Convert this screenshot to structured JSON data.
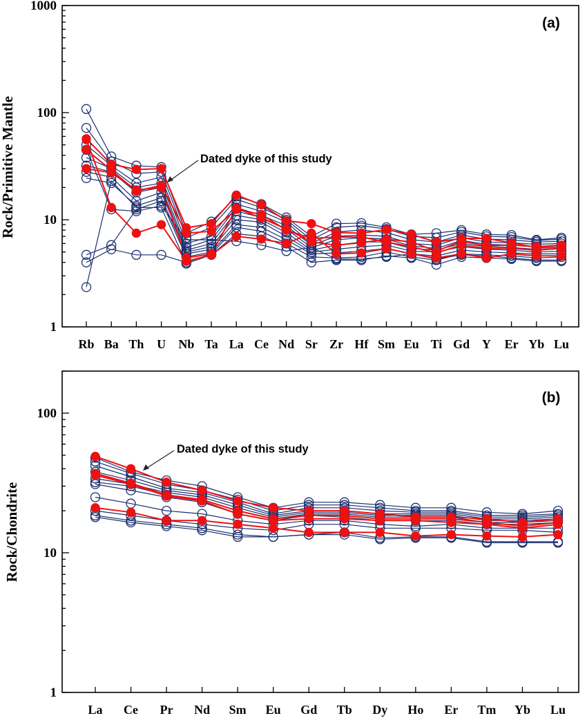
{
  "colors": {
    "sample": "#1a2e6e",
    "dated_dyke": "#ee1111",
    "axis": "#000000"
  },
  "chart_data": [
    {
      "type": "line",
      "panel": "(a)",
      "ylabel": "Rock/Primitive Mantle",
      "yscale": "log",
      "ylim": [
        1,
        1000
      ],
      "yticks": [
        1,
        10,
        100,
        1000
      ],
      "ytick_labels": [
        "1",
        "10",
        "100",
        "1000"
      ],
      "categories": [
        "Rb",
        "Ba",
        "Th",
        "U",
        "Nb",
        "Ta",
        "La",
        "Ce",
        "Nd",
        "Sr",
        "Zr",
        "Hf",
        "Sm",
        "Eu",
        "Ti",
        "Gd",
        "Y",
        "Er",
        "Yb",
        "Lu"
      ],
      "annotation": "Dated dyke of this study",
      "series": [
        {
          "group": "sample",
          "values": [
            108,
            39,
            32,
            31,
            7.5,
            9.6,
            16.5,
            14,
            10.5,
            7,
            9.2,
            9.3,
            8.5,
            7.3,
            7.5,
            8,
            7.3,
            7.2,
            6.5,
            6.8
          ]
        },
        {
          "group": "sample",
          "values": [
            72,
            35,
            27,
            28,
            6.8,
            8.5,
            15.5,
            13,
            10,
            6.5,
            8.5,
            8.8,
            8.2,
            7,
            6.8,
            7.7,
            7,
            6.9,
            6.4,
            6.6
          ]
        },
        {
          "group": "sample",
          "values": [
            50,
            32,
            22,
            25,
            6,
            7,
            14,
            12,
            9.5,
            6,
            7.7,
            8,
            7.6,
            6.5,
            6.2,
            7.2,
            6.6,
            6.5,
            6.2,
            6.3
          ]
        },
        {
          "group": "sample",
          "values": [
            38,
            30,
            20,
            22,
            5.5,
            6.5,
            13,
            11,
            8.8,
            5.8,
            7,
            7.2,
            7,
            6,
            5.8,
            6.8,
            6.2,
            6.1,
            5.9,
            6
          ]
        },
        {
          "group": "sample",
          "values": [
            32,
            28,
            18,
            20,
            5.2,
            6,
            12,
            10.5,
            8.2,
            5.5,
            6.5,
            6.8,
            6.6,
            5.7,
            5.4,
            6.4,
            5.9,
            5.8,
            5.6,
            5.7
          ]
        },
        {
          "group": "sample",
          "values": [
            28,
            25,
            15,
            18,
            5,
            5.6,
            11,
            10,
            7.6,
            5.2,
            5.8,
            6.2,
            6.2,
            5.4,
            5.2,
            6,
            5.6,
            5.5,
            5.3,
            5.4
          ]
        },
        {
          "group": "sample",
          "values": [
            24.5,
            22,
            13.5,
            16,
            4.8,
            5.3,
            10,
            9.5,
            7,
            5,
            5.3,
            5.6,
            5.8,
            5.1,
            5,
            5.6,
            5.3,
            5.2,
            5,
            5.1
          ]
        },
        {
          "group": "sample",
          "values": [
            4.7,
            5.8,
            12.5,
            15,
            4.5,
            5,
            9,
            8.5,
            6.5,
            4.8,
            4.9,
            5.1,
            5.4,
            4.8,
            4.6,
            5.2,
            5,
            4.9,
            4.8,
            4.8
          ]
        },
        {
          "group": "sample",
          "values": [
            4,
            5.3,
            4.7,
            4.7,
            4,
            4.8,
            8.5,
            7.8,
            6,
            4.5,
            4.4,
            4.5,
            5,
            4.5,
            4.2,
            4.8,
            4.7,
            4.6,
            4.4,
            4.5
          ]
        },
        {
          "group": "sample",
          "values": [
            2.35,
            23,
            13,
            13,
            3.9,
            4.7,
            7.4,
            7,
            5.6,
            4,
            4.2,
            4.2,
            4.6,
            4.4,
            3.8,
            4.5,
            4.4,
            4.3,
            4.1,
            4.1
          ]
        },
        {
          "group": "sample",
          "values": [
            45,
            12.5,
            12,
            13.5,
            6.5,
            6.5,
            6.3,
            5.8,
            5.1,
            5.5,
            4.3,
            4.3,
            4.5,
            4.8,
            4.3,
            4.7,
            4.6,
            4.4,
            4.2,
            4.2
          ]
        },
        {
          "group": "dated",
          "values": [
            57,
            33,
            29.5,
            30,
            8.4,
            9.2,
            17,
            13.8,
            9.8,
            9.2,
            7.6,
            7.5,
            8.1,
            7.3,
            6.2,
            6.7,
            6.7,
            6.1,
            5.5,
            5.5
          ]
        },
        {
          "group": "dated",
          "values": [
            45,
            29,
            18.5,
            21,
            7.5,
            7.8,
            12.5,
            11.2,
            8,
            6.7,
            6.9,
            6.9,
            6.2,
            5.6,
            4.9,
            5.8,
            5.4,
            5.4,
            5.2,
            5.4
          ]
        },
        {
          "group": "dated",
          "values": [
            30,
            27.5,
            19,
            20,
            4.4,
            4.8,
            12.8,
            10.4,
            8.2,
            6.2,
            5.8,
            6.1,
            6.6,
            6.2,
            5.1,
            6.3,
            5.7,
            5.8,
            5.6,
            5.8
          ]
        },
        {
          "group": "dated",
          "values": [
            56,
            13,
            7.5,
            9,
            4.1,
            4.7,
            7,
            6.6,
            6,
            7.5,
            4.8,
            4.9,
            5.4,
            4.8,
            4.4,
            4.8,
            4.4,
            4.8,
            4.6,
            4.6
          ]
        }
      ]
    },
    {
      "type": "line",
      "panel": "(b)",
      "ylabel": "Rock/Chondrite",
      "yscale": "log",
      "ylim": [
        1,
        200
      ],
      "yticks": [
        1,
        10,
        100
      ],
      "ytick_labels": [
        "1",
        "10",
        "100"
      ],
      "categories": [
        "La",
        "Ce",
        "Pr",
        "Nd",
        "Sm",
        "Eu",
        "Gd",
        "Tb",
        "Dy",
        "Ho",
        "Er",
        "Tm",
        "Yb",
        "Lu"
      ],
      "annotation": "Dated dyke of this study",
      "series": [
        {
          "group": "sample",
          "values": [
            48,
            38,
            33,
            30,
            25,
            21,
            23,
            23,
            22,
            21,
            21,
            19.5,
            19,
            20
          ]
        },
        {
          "group": "sample",
          "values": [
            45,
            37,
            31,
            28,
            24,
            20,
            22,
            22,
            21,
            20,
            20,
            18.5,
            18.5,
            19
          ]
        },
        {
          "group": "sample",
          "values": [
            42,
            35,
            29,
            27,
            23,
            19,
            21,
            21,
            20,
            19.5,
            19.5,
            18,
            18,
            18.5
          ]
        },
        {
          "group": "sample",
          "values": [
            38,
            33,
            28,
            26,
            22,
            18.5,
            20,
            20,
            19,
            19,
            19,
            17.5,
            17.5,
            18
          ]
        },
        {
          "group": "sample",
          "values": [
            34,
            31,
            27,
            25,
            21,
            18,
            19.5,
            19.5,
            18.5,
            18.5,
            18.5,
            17,
            17,
            17.5
          ]
        },
        {
          "group": "sample",
          "values": [
            32,
            30,
            26,
            24,
            20,
            17.5,
            19,
            19,
            18,
            18,
            18,
            16.5,
            16.5,
            17
          ]
        },
        {
          "group": "sample",
          "values": [
            31,
            28,
            25,
            23,
            19,
            17,
            18.5,
            18,
            17,
            17,
            17,
            16,
            16,
            16.5
          ]
        },
        {
          "group": "sample",
          "values": [
            25,
            22.5,
            20,
            19,
            17,
            16,
            17,
            17,
            16,
            15.5,
            16,
            15,
            15,
            15
          ]
        },
        {
          "group": "sample",
          "values": [
            20,
            18.5,
            17,
            16,
            15,
            14.5,
            16,
            16,
            15,
            15,
            15,
            14.5,
            14.5,
            14
          ]
        },
        {
          "group": "sample",
          "values": [
            18.5,
            17,
            16,
            15,
            13.5,
            13,
            13.5,
            14,
            12.8,
            13,
            13,
            12,
            12,
            12
          ]
        },
        {
          "group": "sample",
          "values": [
            18,
            16.5,
            15.5,
            14.5,
            13,
            13,
            13.5,
            13.5,
            12.5,
            12.8,
            12.8,
            11.8,
            11.8,
            11.8
          ]
        },
        {
          "group": "dated",
          "values": [
            49,
            40,
            32,
            28,
            23.5,
            21,
            20,
            20,
            19,
            18,
            18,
            17.5,
            16.5,
            17.5
          ]
        },
        {
          "group": "dated",
          "values": [
            37,
            31.5,
            26,
            24,
            20,
            17.5,
            18.5,
            18.5,
            17.5,
            17.5,
            17.5,
            16.5,
            15.5,
            16.5
          ]
        },
        {
          "group": "dated",
          "values": [
            36,
            31,
            25.5,
            23.5,
            19,
            17,
            17.5,
            17.5,
            17,
            17,
            16.5,
            16,
            15,
            16
          ]
        },
        {
          "group": "dated",
          "values": [
            21,
            19.5,
            17,
            17,
            16,
            15,
            14,
            14,
            14,
            13.2,
            13.5,
            13.2,
            13,
            13.5
          ]
        }
      ]
    }
  ]
}
